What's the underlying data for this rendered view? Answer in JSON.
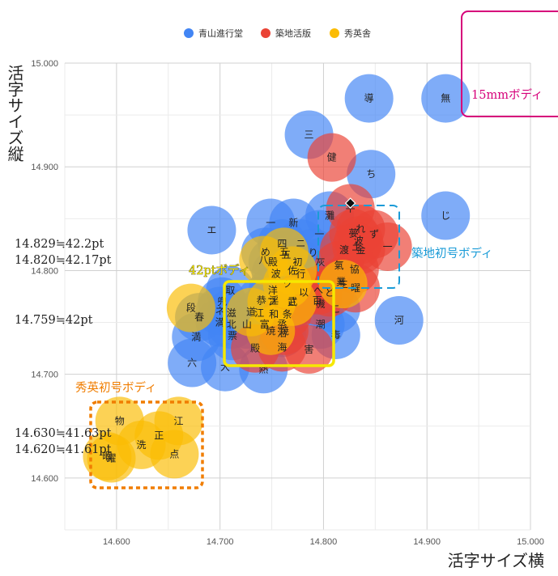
{
  "chart_data": {
    "type": "bubble",
    "xlabel": "活字サイズ横",
    "ylabel": "活字サイズ縦",
    "xlim": [
      14.55,
      15.0
    ],
    "ylim": [
      14.55,
      15.0
    ],
    "x_ticks": [
      "14.600",
      "14.700",
      "14.800",
      "14.900",
      "15.000"
    ],
    "y_ticks": [
      "14.600",
      "14.700",
      "14.800",
      "14.900",
      "15.000"
    ],
    "grid": true,
    "legend_position": "top",
    "series": [
      {
        "name": "青山進行堂",
        "color": "#4285f4",
        "points": [
          {
            "x": 14.844,
            "y": 14.966,
            "label": "導"
          },
          {
            "x": 14.918,
            "y": 14.966,
            "label": "無"
          },
          {
            "x": 14.786,
            "y": 14.931,
            "label": "三"
          },
          {
            "x": 14.846,
            "y": 14.893,
            "label": "ち"
          },
          {
            "x": 14.918,
            "y": 14.853,
            "label": "じ"
          },
          {
            "x": 14.692,
            "y": 14.839,
            "label": "エ"
          },
          {
            "x": 14.771,
            "y": 14.846,
            "label": "新"
          },
          {
            "x": 14.749,
            "y": 14.846,
            "label": "一"
          },
          {
            "x": 14.806,
            "y": 14.853,
            "label": "灘"
          },
          {
            "x": 14.796,
            "y": 14.835,
            "label": "一"
          },
          {
            "x": 14.76,
            "y": 14.826,
            "label": "四"
          },
          {
            "x": 14.778,
            "y": 14.826,
            "label": "ニ"
          },
          {
            "x": 14.744,
            "y": 14.818,
            "label": "め"
          },
          {
            "x": 14.764,
            "y": 14.815,
            "label": "五"
          },
          {
            "x": 14.79,
            "y": 14.817,
            "label": "り"
          },
          {
            "x": 14.751,
            "y": 14.808,
            "label": "殿"
          },
          {
            "x": 14.775,
            "y": 14.808,
            "label": "初"
          },
          {
            "x": 14.797,
            "y": 14.808,
            "label": "灰"
          },
          {
            "x": 14.754,
            "y": 14.797,
            "label": "波"
          },
          {
            "x": 14.778,
            "y": 14.797,
            "label": "行"
          },
          {
            "x": 14.751,
            "y": 14.781,
            "label": "洋"
          },
          {
            "x": 14.71,
            "y": 14.781,
            "label": "取"
          },
          {
            "x": 14.74,
            "y": 14.771,
            "label": "恭"
          },
          {
            "x": 14.752,
            "y": 14.771,
            "label": "淫"
          },
          {
            "x": 14.702,
            "y": 14.77,
            "label": "兜"
          },
          {
            "x": 14.7,
            "y": 14.761,
            "label": "ネ"
          },
          {
            "x": 14.711,
            "y": 14.759,
            "label": "滋"
          },
          {
            "x": 14.738,
            "y": 14.759,
            "label": "江"
          },
          {
            "x": 14.752,
            "y": 14.758,
            "label": "和"
          },
          {
            "x": 14.7,
            "y": 14.75,
            "label": "満"
          },
          {
            "x": 14.711,
            "y": 14.748,
            "label": "北"
          },
          {
            "x": 14.726,
            "y": 14.748,
            "label": "山"
          },
          {
            "x": 14.743,
            "y": 14.748,
            "label": "富"
          },
          {
            "x": 14.76,
            "y": 14.748,
            "label": "烝"
          },
          {
            "x": 14.797,
            "y": 14.768,
            "label": "機"
          },
          {
            "x": 14.812,
            "y": 14.763,
            "label": "こ"
          },
          {
            "x": 14.68,
            "y": 14.755,
            "label": "春"
          },
          {
            "x": 14.712,
            "y": 14.737,
            "label": "票"
          },
          {
            "x": 14.76,
            "y": 14.74,
            "label": "治"
          },
          {
            "x": 14.797,
            "y": 14.748,
            "label": "潮"
          },
          {
            "x": 14.677,
            "y": 14.736,
            "label": "満"
          },
          {
            "x": 14.812,
            "y": 14.738,
            "label": "毒"
          },
          {
            "x": 14.873,
            "y": 14.752,
            "label": "河"
          },
          {
            "x": 14.673,
            "y": 14.711,
            "label": "六"
          },
          {
            "x": 14.705,
            "y": 14.707,
            "label": "大"
          },
          {
            "x": 14.742,
            "y": 14.705,
            "label": "熱"
          }
        ]
      },
      {
        "name": "築地活版",
        "color": "#ea4335",
        "points": [
          {
            "x": 14.808,
            "y": 14.909,
            "label": "健"
          },
          {
            "x": 14.826,
            "y": 14.86,
            "label": "平"
          },
          {
            "x": 14.836,
            "y": 14.84,
            "label": "れ"
          },
          {
            "x": 14.849,
            "y": 14.835,
            "label": "ず"
          },
          {
            "x": 14.829,
            "y": 14.836,
            "label": "夢"
          },
          {
            "x": 14.834,
            "y": 14.829,
            "label": "波"
          },
          {
            "x": 14.836,
            "y": 14.82,
            "label": "金"
          },
          {
            "x": 14.832,
            "y": 14.823,
            "label": "土"
          },
          {
            "x": 14.82,
            "y": 14.82,
            "label": "渡"
          },
          {
            "x": 14.862,
            "y": 14.823,
            "label": "一"
          },
          {
            "x": 14.83,
            "y": 14.801,
            "label": "協"
          },
          {
            "x": 14.815,
            "y": 14.805,
            "label": "氣"
          },
          {
            "x": 14.817,
            "y": 14.789,
            "label": "業"
          },
          {
            "x": 14.831,
            "y": 14.783,
            "label": "曜"
          },
          {
            "x": 14.795,
            "y": 14.781,
            "label": "へ"
          },
          {
            "x": 14.806,
            "y": 14.779,
            "label": "ど"
          },
          {
            "x": 14.781,
            "y": 14.779,
            "label": "以"
          },
          {
            "x": 14.794,
            "y": 14.771,
            "label": "百"
          },
          {
            "x": 14.77,
            "y": 14.77,
            "label": "武"
          },
          {
            "x": 14.765,
            "y": 14.758,
            "label": "条"
          },
          {
            "x": 14.762,
            "y": 14.742,
            "label": "焼"
          },
          {
            "x": 14.734,
            "y": 14.725,
            "label": "殿"
          },
          {
            "x": 14.76,
            "y": 14.726,
            "label": "海"
          },
          {
            "x": 14.786,
            "y": 14.724,
            "label": "害"
          }
        ]
      },
      {
        "name": "秀英舎",
        "color": "#fbbc04",
        "points": [
          {
            "x": 14.742,
            "y": 14.81,
            "label": "八"
          },
          {
            "x": 14.762,
            "y": 14.818,
            "label": "五"
          },
          {
            "x": 14.77,
            "y": 14.8,
            "label": "佐"
          },
          {
            "x": 14.819,
            "y": 14.787,
            "label": "生"
          },
          {
            "x": 14.765,
            "y": 14.787,
            "label": "ツ"
          },
          {
            "x": 14.77,
            "y": 14.77,
            "label": "さ"
          },
          {
            "x": 14.75,
            "y": 14.77,
            "label": "フ"
          },
          {
            "x": 14.73,
            "y": 14.76,
            "label": "道"
          },
          {
            "x": 14.749,
            "y": 14.742,
            "label": "焼"
          },
          {
            "x": 14.672,
            "y": 14.764,
            "label": "段"
          },
          {
            "x": 14.603,
            "y": 14.655,
            "label": "物"
          },
          {
            "x": 14.66,
            "y": 14.655,
            "label": "江"
          },
          {
            "x": 14.641,
            "y": 14.641,
            "label": "正"
          },
          {
            "x": 14.624,
            "y": 14.632,
            "label": "洗"
          },
          {
            "x": 14.656,
            "y": 14.623,
            "label": "点"
          },
          {
            "x": 14.591,
            "y": 14.621,
            "label": "暇"
          },
          {
            "x": 14.595,
            "y": 14.619,
            "label": "躍"
          }
        ]
      }
    ],
    "highlight_point": {
      "x": 14.826,
      "y": 14.865
    }
  },
  "annotations": {
    "label_15mm": "15mmボディ",
    "label_42pt": "42ptボディ",
    "label_tsukiji": "築地初号ボディ",
    "label_shuei": "秀英初号ボディ",
    "y_notes": [
      "14.829≒42.2pt",
      "14.820≒42.17pt",
      "14.759≒42pt",
      "14.630≒41.63pt",
      "14.620≒41.61pt"
    ]
  }
}
